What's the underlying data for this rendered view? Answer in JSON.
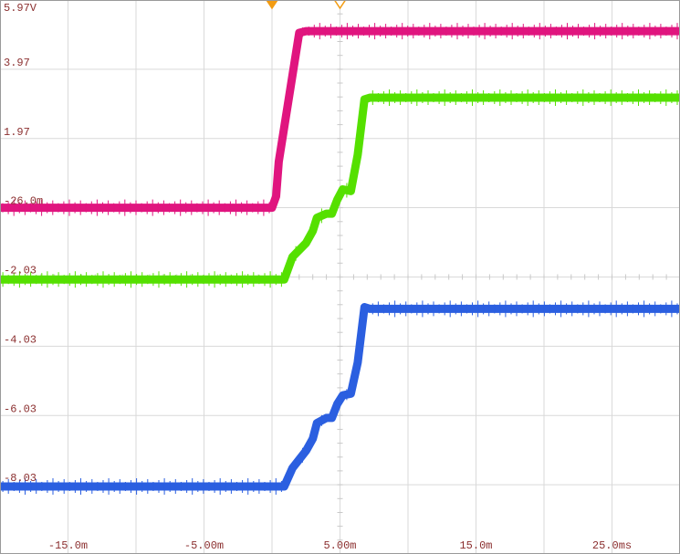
{
  "chart_data": {
    "type": "line",
    "title": "",
    "xlabel": "",
    "ylabel": "",
    "xlim": [
      -20,
      30
    ],
    "ylim": [
      -10.03,
      5.97
    ],
    "y_ticks": [
      {
        "value": 5.97,
        "label": "5.97V"
      },
      {
        "value": 3.97,
        "label": "3.97"
      },
      {
        "value": 1.97,
        "label": "1.97"
      },
      {
        "value": -0.026,
        "label": "-26.0m"
      },
      {
        "value": -2.03,
        "label": "-2.03"
      },
      {
        "value": -4.03,
        "label": "-4.03"
      },
      {
        "value": -6.03,
        "label": "-6.03"
      },
      {
        "value": -8.03,
        "label": "-8.03"
      }
    ],
    "x_ticks": [
      {
        "value": -15,
        "label": "-15.0m"
      },
      {
        "value": -5,
        "label": "-5.00m"
      },
      {
        "value": 5,
        "label": "5.00m"
      },
      {
        "value": 15,
        "label": "15.0m"
      },
      {
        "value": 25,
        "label": "25.0ms"
      }
    ],
    "grid": true,
    "trigger_markers": [
      {
        "x": 0,
        "style": "filled",
        "color": "#f39c12"
      },
      {
        "x": 5,
        "style": "hollow",
        "color": "#f39c12"
      }
    ],
    "series": [
      {
        "color": "#e0157f",
        "x": [
          -20,
          0,
          0.3,
          0.5,
          2.0,
          2.5,
          30
        ],
        "y": [
          -0.03,
          -0.03,
          0.3,
          1.3,
          5.02,
          5.07,
          5.07
        ]
      },
      {
        "color": "#55e000",
        "x": [
          -20,
          0.9,
          1.5,
          2.5,
          3.0,
          3.3,
          4.0,
          4.4,
          4.8,
          5.2,
          5.8,
          6.3,
          6.8,
          7.2,
          30
        ],
        "y": [
          -2.1,
          -2.1,
          -1.45,
          -1.05,
          -0.7,
          -0.32,
          -0.2,
          -0.2,
          0.2,
          0.5,
          0.45,
          1.5,
          3.1,
          3.15,
          3.15
        ]
      },
      {
        "color": "#2b5fe0",
        "x": [
          -20,
          0.9,
          1.5,
          2.5,
          3.0,
          3.3,
          4.0,
          4.4,
          4.8,
          5.2,
          5.8,
          6.3,
          6.8,
          7.2,
          30
        ],
        "y": [
          -8.08,
          -8.08,
          -7.55,
          -7.05,
          -6.7,
          -6.25,
          -6.1,
          -6.1,
          -5.7,
          -5.45,
          -5.4,
          -4.5,
          -2.9,
          -2.95,
          -2.95
        ]
      }
    ]
  }
}
